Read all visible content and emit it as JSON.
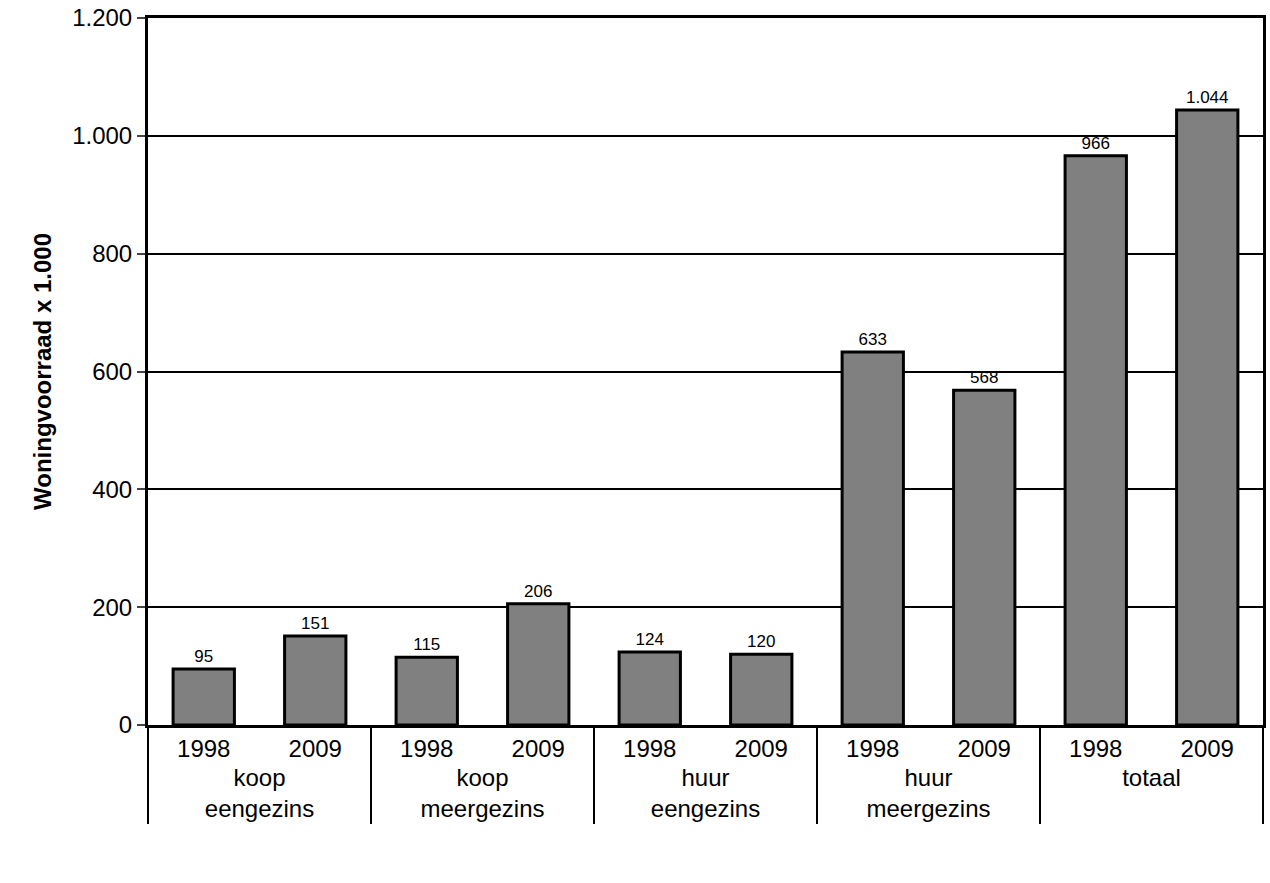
{
  "chart_data": {
    "type": "bar",
    "y_label": "Woningvoorraad x 1.000",
    "groups": [
      "koop eengezins",
      "koop eengezins",
      "koop meergezins",
      "koop meergezins",
      "huur eengezins",
      "huur eengezins",
      "huur meergezins",
      "huur meergezins",
      "totaal",
      "totaal"
    ],
    "categories": [
      "1998",
      "2009",
      "1998",
      "2009",
      "1998",
      "2009",
      "1998",
      "2009",
      "1998",
      "2009"
    ],
    "values": [
      95,
      151,
      115,
      206,
      124,
      120,
      633,
      568,
      966,
      1044
    ],
    "value_labels": [
      "95",
      "151",
      "115",
      "206",
      "124",
      "120",
      "633",
      "568",
      "966",
      "1.044"
    ],
    "data_labels": true,
    "color": "#808080",
    "ylim": [
      0,
      1200
    ],
    "yticks": [
      0,
      200,
      400,
      600,
      800,
      {
        "value": 1000,
        "label": "1.000"
      },
      {
        "value": 1200,
        "label": "1.200"
      }
    ],
    "grid": true
  }
}
